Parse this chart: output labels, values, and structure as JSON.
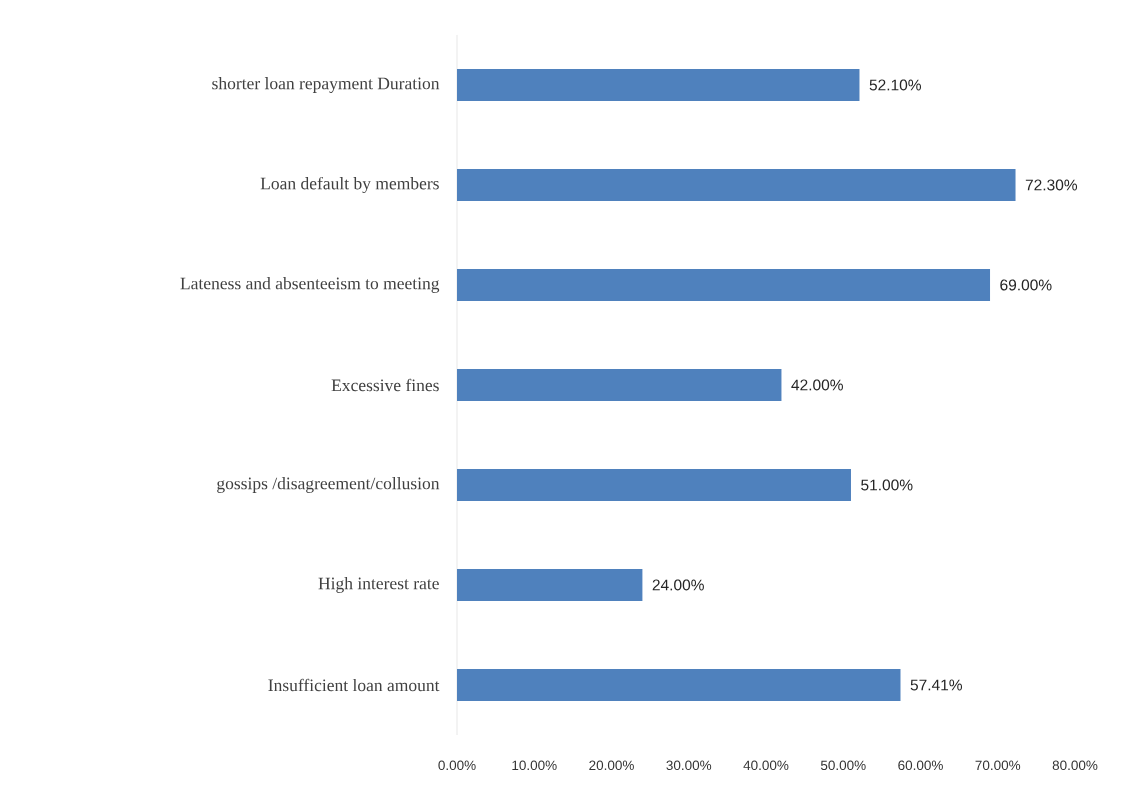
{
  "chart_data": {
    "type": "bar",
    "orientation": "horizontal",
    "categories": [
      "shorter loan repayment Duration",
      "Loan default by members",
      "Lateness and absenteeism to meeting",
      "Excessive fines",
      "gossips /disagreement/collusion",
      "High interest rate",
      "Insufficient loan amount"
    ],
    "values": [
      52.1,
      72.3,
      69.0,
      42.0,
      51.0,
      24.0,
      57.41
    ],
    "value_labels": [
      "52.10%",
      "72.30%",
      "69.00%",
      "42.00%",
      "51.00%",
      "24.00%",
      "57.41%"
    ],
    "color": "#4f81bd",
    "xlim": [
      0,
      80
    ],
    "xticks": [
      {
        "value": 0,
        "label": "0.00%"
      },
      {
        "value": 10,
        "label": "10.00%"
      },
      {
        "value": 20,
        "label": "20.00%"
      },
      {
        "value": 30,
        "label": "30.00%"
      },
      {
        "value": 40,
        "label": "40.00%"
      },
      {
        "value": 50,
        "label": "50.00%"
      },
      {
        "value": 60,
        "label": "60.00%"
      },
      {
        "value": 70,
        "label": "70.00%"
      },
      {
        "value": 80,
        "label": "80.00%"
      }
    ],
    "grid": false
  }
}
